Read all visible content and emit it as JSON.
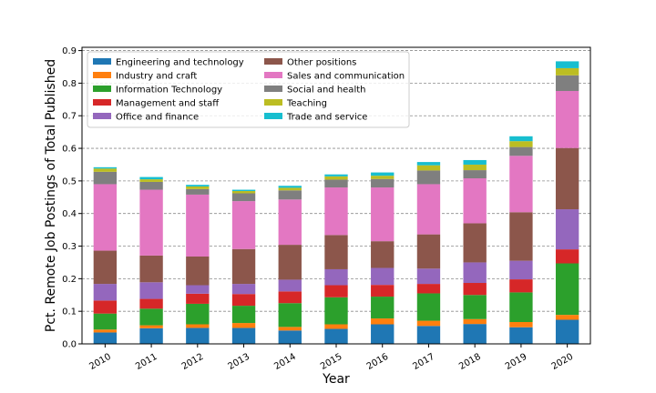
{
  "chart_data": {
    "type": "bar",
    "stacked": true,
    "title": "",
    "xlabel": "Year",
    "ylabel": "Pct. Remote Job Postings of Total Published",
    "ylim": [
      0,
      0.91
    ],
    "yticks": [
      "0.0",
      "0.1",
      "0.2",
      "0.3",
      "0.4",
      "0.5",
      "0.6",
      "0.7",
      "0.8",
      "0.9"
    ],
    "grid": "horizontal-dashed",
    "legend_position": "top-left",
    "categories": [
      "2010",
      "2011",
      "2012",
      "2013",
      "2014",
      "2015",
      "2016",
      "2017",
      "2018",
      "2019",
      "2020"
    ],
    "series": [
      {
        "name": "Engineering and technology",
        "color": "#1f77b4",
        "values": [
          0.035,
          0.048,
          0.049,
          0.049,
          0.041,
          0.046,
          0.06,
          0.055,
          0.061,
          0.051,
          0.074
        ]
      },
      {
        "name": "Industry and craft",
        "color": "#ff7f0e",
        "values": [
          0.009,
          0.009,
          0.011,
          0.015,
          0.011,
          0.014,
          0.018,
          0.016,
          0.015,
          0.016,
          0.015
        ]
      },
      {
        "name": "Information Technology",
        "color": "#2ca02c",
        "values": [
          0.049,
          0.051,
          0.063,
          0.053,
          0.073,
          0.083,
          0.067,
          0.084,
          0.074,
          0.091,
          0.158
        ]
      },
      {
        "name": "Management and staff",
        "color": "#d62728",
        "values": [
          0.04,
          0.03,
          0.031,
          0.036,
          0.036,
          0.037,
          0.036,
          0.029,
          0.037,
          0.04,
          0.043
        ]
      },
      {
        "name": "Office and finance",
        "color": "#9467bd",
        "values": [
          0.051,
          0.051,
          0.026,
          0.031,
          0.036,
          0.049,
          0.052,
          0.047,
          0.063,
          0.057,
          0.123
        ]
      },
      {
        "name": "Other positions",
        "color": "#8c564b",
        "values": [
          0.102,
          0.082,
          0.088,
          0.107,
          0.107,
          0.105,
          0.082,
          0.105,
          0.12,
          0.149,
          0.188
        ]
      },
      {
        "name": "Sales and communication",
        "color": "#e377c2",
        "values": [
          0.204,
          0.202,
          0.19,
          0.147,
          0.139,
          0.146,
          0.165,
          0.154,
          0.138,
          0.173,
          0.175
        ]
      },
      {
        "name": "Social and health",
        "color": "#7f7f7f",
        "values": [
          0.038,
          0.024,
          0.017,
          0.024,
          0.028,
          0.024,
          0.026,
          0.042,
          0.025,
          0.027,
          0.048
        ]
      },
      {
        "name": "Teaching",
        "color": "#bcbd22",
        "values": [
          0.01,
          0.008,
          0.008,
          0.007,
          0.008,
          0.01,
          0.01,
          0.016,
          0.017,
          0.018,
          0.022
        ]
      },
      {
        "name": "Trade and service",
        "color": "#17becf",
        "values": [
          0.004,
          0.007,
          0.005,
          0.004,
          0.006,
          0.006,
          0.01,
          0.01,
          0.014,
          0.015,
          0.021
        ]
      }
    ]
  }
}
